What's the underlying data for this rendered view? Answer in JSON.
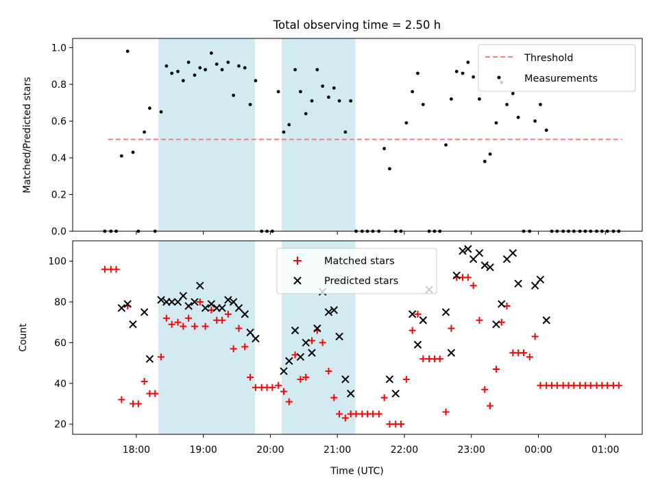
{
  "chart_data": [
    {
      "type": "scatter",
      "title": "Total observing time = 2.50 h",
      "ylabel": "Matched/Predicted stars",
      "ylim": [
        0,
        1.05
      ],
      "yticks": [
        0.0,
        0.2,
        0.4,
        0.6,
        0.8,
        1.0
      ],
      "ytick_labels": [
        "0.0",
        "0.2",
        "0.4",
        "0.6",
        "0.8",
        "1.0"
      ],
      "legend_position": "top-right",
      "legend": [
        "Threshold",
        "Measurements"
      ],
      "shaded_intervals_hours": [
        [
          18.33,
          19.77
        ],
        [
          20.17,
          21.27
        ]
      ],
      "shade_color": "#add8e6",
      "threshold": {
        "name": "Threshold",
        "value": 0.5,
        "x_range": [
          17.58,
          25.25
        ],
        "color": "#f08080"
      },
      "measurements": {
        "name": "Measurements",
        "color": "#000000",
        "x_hours": [
          17.53,
          17.62,
          17.7,
          17.78,
          17.87,
          17.95,
          18.03,
          18.12,
          18.2,
          18.28,
          18.37,
          18.45,
          18.53,
          18.62,
          18.7,
          18.78,
          18.87,
          18.95,
          19.03,
          19.12,
          19.2,
          19.28,
          19.37,
          19.45,
          19.53,
          19.62,
          19.7,
          19.78,
          19.87,
          19.95,
          20.03,
          20.12,
          20.2,
          20.28,
          20.37,
          20.45,
          20.53,
          20.62,
          20.7,
          20.78,
          20.87,
          20.95,
          21.03,
          21.12,
          21.2,
          21.28,
          21.37,
          21.45,
          21.53,
          21.62,
          21.7,
          21.78,
          21.87,
          21.95,
          22.03,
          22.12,
          22.2,
          22.28,
          22.37,
          22.45,
          22.53,
          22.62,
          22.7,
          22.78,
          22.87,
          22.95,
          23.03,
          23.12,
          23.2,
          23.28,
          23.37,
          23.45,
          23.53,
          23.62,
          23.7,
          23.78,
          23.87,
          23.95,
          24.03,
          24.12,
          24.2,
          24.28,
          24.37,
          24.45,
          24.53,
          24.62,
          24.7,
          24.78,
          24.87,
          24.95,
          25.03,
          25.12,
          25.2
        ],
        "y": [
          0,
          0,
          0,
          0.41,
          0.98,
          0.43,
          0,
          0.54,
          0.67,
          0,
          0.65,
          0.9,
          0.86,
          0.87,
          0.82,
          0.92,
          0.85,
          0.89,
          0.88,
          0.97,
          0.91,
          0.88,
          0.92,
          0.74,
          0.9,
          0.89,
          0.69,
          0.82,
          0,
          0,
          0,
          0.76,
          0.54,
          0.58,
          0.88,
          0.76,
          0.64,
          0.71,
          0.88,
          0.79,
          0.73,
          0.78,
          0.71,
          0.54,
          0.71,
          0,
          0,
          0,
          0,
          0,
          0.45,
          0.34,
          0,
          0,
          0.59,
          0.76,
          0.86,
          0.69,
          0,
          0,
          0,
          0.47,
          0.72,
          0.87,
          0.86,
          0.92,
          0.84,
          0.72,
          0.38,
          0.42,
          0.59,
          0.81,
          0.69,
          0.75,
          0.62,
          0,
          0,
          0.6,
          0.69,
          0.55,
          0,
          0,
          0,
          0,
          0,
          0,
          0,
          0,
          0,
          0,
          0,
          0,
          0
        ]
      }
    },
    {
      "type": "scatter",
      "xlabel": "Time (UTC)",
      "ylabel": "Count",
      "xlim_hours": [
        17.05,
        25.55
      ],
      "ylim": [
        15,
        110
      ],
      "yticks": [
        20,
        40,
        60,
        80,
        100
      ],
      "ytick_labels": [
        "20",
        "40",
        "60",
        "80",
        "100"
      ],
      "xticks_hours": [
        18,
        19,
        20,
        21,
        22,
        23,
        24,
        25
      ],
      "xtick_labels": [
        "18:00",
        "19:00",
        "20:00",
        "21:00",
        "22:00",
        "23:00",
        "00:00",
        "01:00"
      ],
      "legend_position": "upper-center",
      "legend": [
        "Matched stars",
        "Predicted stars"
      ],
      "shaded_intervals_hours": [
        [
          18.33,
          19.77
        ],
        [
          20.17,
          21.27
        ]
      ],
      "shade_color": "#add8e6",
      "matched": {
        "name": "Matched stars",
        "marker": "+",
        "color": "#ff0000",
        "x_hours": [
          17.53,
          17.62,
          17.7,
          17.78,
          17.87,
          17.95,
          18.03,
          18.12,
          18.2,
          18.28,
          18.37,
          18.45,
          18.53,
          18.62,
          18.7,
          18.78,
          18.87,
          18.95,
          19.03,
          19.12,
          19.2,
          19.28,
          19.37,
          19.45,
          19.53,
          19.62,
          19.7,
          19.78,
          19.87,
          19.95,
          20.03,
          20.12,
          20.2,
          20.28,
          20.37,
          20.45,
          20.53,
          20.62,
          20.7,
          20.78,
          20.87,
          20.95,
          21.03,
          21.12,
          21.2,
          21.28,
          21.37,
          21.45,
          21.53,
          21.62,
          21.7,
          21.78,
          21.87,
          21.95,
          22.03,
          22.12,
          22.2,
          22.28,
          22.37,
          22.45,
          22.53,
          22.62,
          22.7,
          22.78,
          22.87,
          22.95,
          23.03,
          23.12,
          23.2,
          23.28,
          23.37,
          23.45,
          23.53,
          23.62,
          23.7,
          23.78,
          23.87,
          23.95,
          24.03,
          24.12,
          24.2,
          24.28,
          24.37,
          24.45,
          24.53,
          24.62,
          24.7,
          24.78,
          24.87,
          24.95,
          25.03,
          25.12,
          25.2
        ],
        "y": [
          96,
          96,
          96,
          32,
          78,
          30,
          30,
          41,
          35,
          35,
          53,
          72,
          69,
          70,
          68,
          72,
          68,
          80,
          68,
          76,
          71,
          71,
          74,
          57,
          67,
          58,
          43,
          38,
          38,
          38,
          38,
          39,
          36,
          31,
          54,
          42,
          43,
          61,
          66,
          60,
          46,
          33,
          25,
          23,
          25,
          25,
          25,
          25,
          25,
          25,
          33,
          20,
          20,
          20,
          42,
          66,
          74,
          52,
          52,
          52,
          52,
          26,
          67,
          92,
          92,
          92,
          88,
          71,
          37,
          29,
          47,
          70,
          78,
          55,
          55,
          55,
          53,
          63,
          39,
          39,
          39,
          39,
          39,
          39,
          39,
          39,
          39,
          39,
          39,
          39,
          39,
          39,
          39
        ]
      },
      "predicted": {
        "name": "Predicted stars",
        "marker": "x",
        "color": "#000000",
        "x_hours": [
          17.78,
          17.87,
          17.95,
          18.12,
          18.2,
          18.37,
          18.45,
          18.53,
          18.62,
          18.7,
          18.78,
          18.87,
          18.95,
          19.03,
          19.12,
          19.2,
          19.28,
          19.37,
          19.45,
          19.53,
          19.62,
          19.7,
          19.78,
          20.2,
          20.28,
          20.37,
          20.45,
          20.53,
          20.62,
          20.7,
          20.78,
          20.87,
          20.95,
          21.03,
          21.12,
          21.2,
          21.78,
          21.87,
          22.12,
          22.2,
          22.28,
          22.37,
          22.62,
          22.7,
          22.78,
          22.87,
          22.95,
          23.03,
          23.12,
          23.2,
          23.28,
          23.37,
          23.45,
          23.53,
          23.62,
          23.7,
          23.95,
          24.03,
          24.12
        ],
        "y": [
          77,
          79,
          69,
          75,
          52,
          81,
          80,
          80,
          80,
          83,
          78,
          80,
          88,
          77,
          79,
          77,
          77,
          81,
          80,
          77,
          74,
          65,
          62,
          46,
          51,
          66,
          53,
          60,
          55,
          67,
          85,
          75,
          76,
          63,
          42,
          35,
          42,
          35,
          74,
          59,
          71,
          86,
          75,
          55,
          93,
          105,
          106,
          101,
          104,
          98,
          97,
          69,
          79,
          101,
          104,
          89,
          88,
          91,
          71
        ]
      }
    }
  ]
}
